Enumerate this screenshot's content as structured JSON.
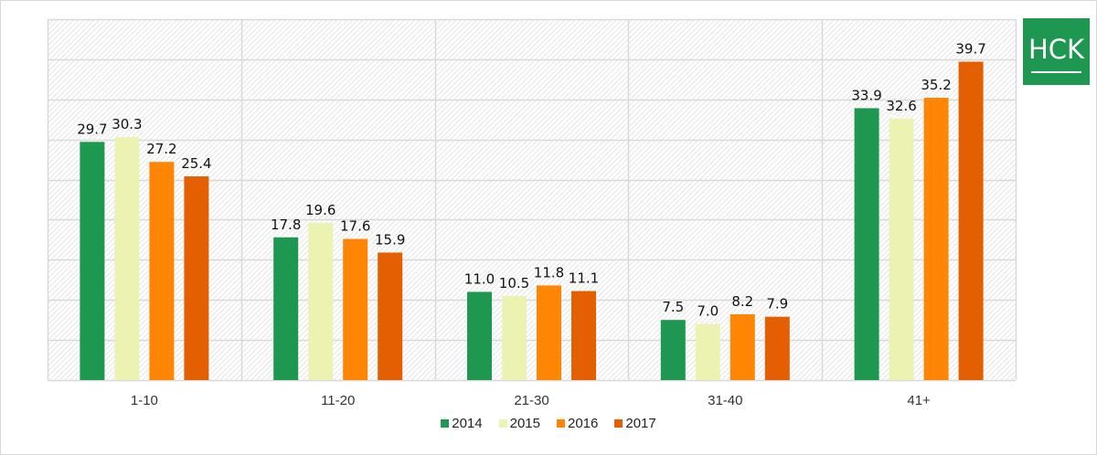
{
  "logo": {
    "text": "HCK"
  },
  "chart_data": {
    "type": "bar",
    "title": "",
    "xlabel": "",
    "ylabel": "",
    "categories": [
      "1-10",
      "11-20",
      "21-30",
      "31-40",
      "41+"
    ],
    "series": [
      {
        "name": "2014",
        "color": "#1e9850",
        "values": [
          29.7,
          17.8,
          11.0,
          7.5,
          33.9
        ],
        "labels": [
          "29.7",
          "17.8",
          "11.0",
          "7.5",
          "33.9"
        ]
      },
      {
        "name": "2015",
        "color": "#ecf2b2",
        "values": [
          30.3,
          19.6,
          10.5,
          7.0,
          32.6
        ],
        "labels": [
          "30.3",
          "19.6",
          "10.5",
          "7.0",
          "32.6"
        ]
      },
      {
        "name": "2016",
        "color": "#fe8604",
        "values": [
          27.2,
          17.6,
          11.8,
          8.2,
          35.2
        ],
        "labels": [
          "27.2",
          "17.6",
          "11.8",
          "8.2",
          "35.2"
        ]
      },
      {
        "name": "2017",
        "color": "#e35f01",
        "values": [
          25.4,
          15.9,
          11.1,
          7.9,
          39.7
        ],
        "labels": [
          "25.4",
          "15.9",
          "11.1",
          "7.9",
          "39.7"
        ]
      }
    ],
    "ylim": [
      0,
      45
    ],
    "ytick_step": 5,
    "yticklabels_visible": false,
    "grid": true,
    "legend": "bottom-center"
  }
}
